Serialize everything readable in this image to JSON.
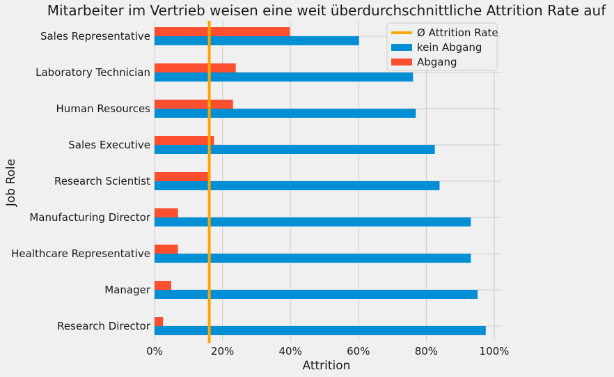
{
  "chart_data": {
    "type": "bar",
    "orientation": "horizontal",
    "title": "Mitarbeiter im Vertrieb weisen eine weit überdurchschnittliche Attrition Rate auf",
    "xlabel": "Attrition",
    "ylabel": "Job Role",
    "xlim": [
      0,
      1.02
    ],
    "xticks": [
      {
        "value": 0.0,
        "label": "0%"
      },
      {
        "value": 0.2,
        "label": "20%"
      },
      {
        "value": 0.4,
        "label": "40%"
      },
      {
        "value": 0.6,
        "label": "60%"
      },
      {
        "value": 0.8,
        "label": "80%"
      },
      {
        "value": 1.0,
        "label": "100%"
      }
    ],
    "categories": [
      "Research Director",
      "Manager",
      "Healthcare Representative",
      "Manufacturing Director",
      "Research Scientist",
      "Sales Executive",
      "Human Resources",
      "Laboratory Technician",
      "Sales Representative"
    ],
    "series": [
      {
        "name": "kein Abgang",
        "color": "#008fd5",
        "values": [
          0.975,
          0.951,
          0.931,
          0.931,
          0.839,
          0.825,
          0.769,
          0.761,
          0.602
        ]
      },
      {
        "name": "Abgang",
        "color": "#fc4f30",
        "values": [
          0.025,
          0.049,
          0.069,
          0.069,
          0.161,
          0.175,
          0.231,
          0.239,
          0.398
        ]
      }
    ],
    "reference_line": {
      "name": "Ø Attrition Rate",
      "value": 0.161,
      "color": "#ffa500"
    },
    "grid": true,
    "legend_position": "top-right"
  }
}
